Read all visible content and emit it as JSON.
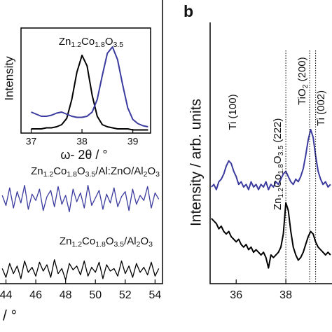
{
  "chart_data": [
    {
      "type": "line",
      "title": "Zn1.2Co1.8O3.5",
      "xlabel": "ω- 2θ / °",
      "ylabel": "Intensity",
      "x": [
        37.0,
        37.1,
        37.2,
        37.3,
        37.4,
        37.5,
        37.6,
        37.7,
        37.8,
        37.9,
        38.0,
        38.1,
        38.2,
        38.3,
        38.4,
        38.5,
        38.6,
        38.7,
        38.8,
        38.9,
        39.0,
        39.1,
        39.2,
        39.3
      ],
      "xlim": [
        36.8,
        39.35
      ],
      "xticks": [
        37,
        38,
        39
      ],
      "ylim": [
        0,
        100
      ],
      "series": [
        {
          "color": "#000000",
          "values": [
            4,
            4,
            4,
            5,
            5,
            6,
            8,
            14,
            32,
            58,
            74,
            64,
            36,
            16,
            8,
            6,
            5,
            4,
            4,
            4,
            3,
            3,
            3,
            3
          ]
        },
        {
          "color": "#3b3b9f",
          "values": [
            20,
            18,
            16,
            16,
            17,
            19,
            20,
            18,
            16,
            15,
            15,
            16,
            20,
            32,
            55,
            76,
            82,
            70,
            46,
            24,
            13,
            9,
            7,
            6
          ]
        }
      ]
    },
    {
      "type": "line",
      "xlabel": "/ °",
      "x": [
        43.75,
        44,
        44.25,
        44.5,
        44.75,
        45,
        45.25,
        45.5,
        45.75,
        46,
        46.25,
        46.5,
        46.75,
        47,
        47.25,
        47.5,
        47.75,
        48,
        48.25,
        48.5,
        48.75,
        49,
        49.25,
        49.5,
        49.75,
        50,
        50.25,
        50.5,
        50.75,
        51,
        51.25,
        51.5,
        51.75,
        52,
        52.25,
        52.5,
        52.75,
        53,
        53.25,
        53.5,
        53.75,
        54,
        54.25
      ],
      "xlim": [
        43.6,
        54.5
      ],
      "xticks": [
        44,
        46,
        48,
        50,
        52,
        54
      ],
      "ylim": [
        0,
        100
      ],
      "series": [
        {
          "name": "Zn1.2Co1.8O3.5/Al:ZnO/Al2O3",
          "color": "#3b3b9f",
          "values": [
            70,
            62,
            76,
            60,
            73,
            64,
            78,
            59,
            71,
            66,
            75,
            58,
            69,
            74,
            61,
            77,
            63,
            70,
            57,
            75,
            65,
            72,
            60,
            78,
            62,
            68,
            74,
            59,
            71,
            64,
            76,
            61,
            69,
            73,
            58,
            75,
            63,
            70,
            66,
            77,
            60,
            72,
            67
          ]
        },
        {
          "name": "Zn1.2Co1.8O3.5/Al2O3",
          "color": "#000000",
          "values": [
            12,
            5,
            16,
            8,
            14,
            4,
            18,
            9,
            13,
            6,
            17,
            10,
            15,
            5,
            19,
            8,
            12,
            3,
            16,
            11,
            14,
            7,
            18,
            6,
            13,
            9,
            17,
            4,
            15,
            10,
            12,
            6,
            18,
            8,
            14,
            5,
            16,
            9,
            13,
            7,
            17,
            6,
            12
          ]
        }
      ]
    },
    {
      "type": "line",
      "panel_label": "b",
      "ylabel": "Intensity / arb. units",
      "x": [
        35.0,
        35.1,
        35.2,
        35.3,
        35.4,
        35.5,
        35.6,
        35.7,
        35.8,
        35.9,
        36.0,
        36.1,
        36.2,
        36.3,
        36.4,
        36.5,
        36.6,
        36.7,
        36.8,
        36.9,
        37.0,
        37.1,
        37.2,
        37.3,
        37.4,
        37.5,
        37.6,
        37.7,
        37.8,
        37.9,
        38.0,
        38.1,
        38.2,
        38.3,
        38.4,
        38.5,
        38.6,
        38.7,
        38.8,
        38.9,
        39.0,
        39.1,
        39.2,
        39.3,
        39.4,
        39.5,
        39.6,
        39.7,
        39.8
      ],
      "xlim": [
        34.95,
        39.86
      ],
      "xticks": [
        36,
        38
      ],
      "ylim": [
        0,
        100
      ],
      "series": [
        {
          "color": "#3b3b9f",
          "values": [
            37,
            38,
            36,
            39,
            40,
            42,
            45,
            47,
            46,
            43,
            41,
            38,
            39,
            37,
            38,
            36,
            39,
            37,
            38,
            36,
            38,
            37,
            39,
            36,
            38,
            37,
            39,
            38,
            40,
            42,
            43,
            41,
            39,
            38,
            40,
            39,
            41,
            44,
            49,
            55,
            59,
            56,
            49,
            43,
            40,
            38,
            39,
            37,
            38
          ]
        },
        {
          "color": "#000000",
          "values": [
            25,
            24,
            23,
            21,
            22,
            20,
            19,
            20,
            18,
            17,
            16,
            17,
            15,
            14,
            15,
            13,
            14,
            12,
            13,
            12,
            11,
            12,
            10,
            6,
            11,
            10,
            11,
            12,
            14,
            19,
            31,
            28,
            20,
            14,
            11,
            9,
            10,
            12,
            15,
            18,
            20,
            19,
            16,
            14,
            13,
            12,
            11,
            12,
            11
          ]
        }
      ],
      "reference_lines": [
        {
          "x": 38.0,
          "label": "Zn1.2Co1.8O3.5 (222)"
        },
        {
          "x": 38.96,
          "label": "TiO2 (200)"
        },
        {
          "x": 39.2,
          "label": "Ti (002)"
        }
      ],
      "annotations": [
        "Ti (100)"
      ]
    }
  ]
}
